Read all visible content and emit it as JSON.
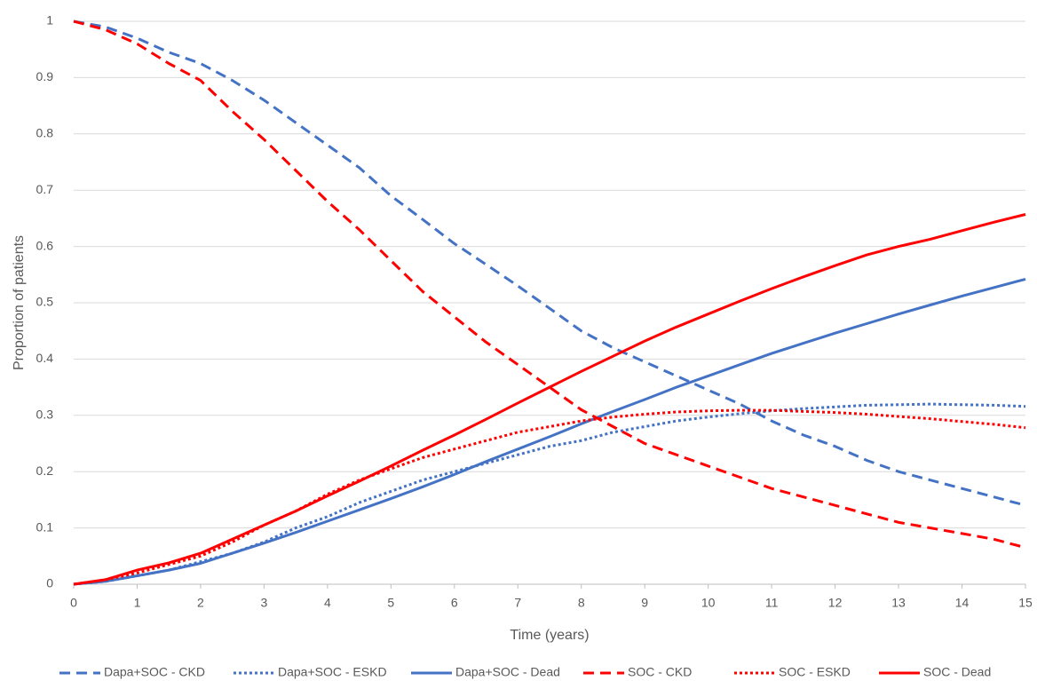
{
  "chart_data": {
    "type": "line",
    "x_label": "Time (years)",
    "y_label": "Proportion of patients",
    "x": [
      0,
      0.5,
      1,
      1.5,
      2,
      2.5,
      3,
      3.5,
      4,
      4.5,
      5,
      5.5,
      6,
      6.5,
      7,
      7.5,
      8,
      8.5,
      9,
      9.5,
      10,
      10.5,
      11,
      11.5,
      12,
      12.5,
      13,
      13.5,
      14,
      14.5,
      15
    ],
    "xlim": [
      0,
      15
    ],
    "xticks": [
      0,
      1,
      2,
      3,
      4,
      5,
      6,
      7,
      8,
      9,
      10,
      11,
      12,
      13,
      14,
      15
    ],
    "ylim": [
      0,
      1
    ],
    "yticks": [
      0,
      0.1,
      0.2,
      0.3,
      0.4,
      0.5,
      0.6,
      0.7,
      0.8,
      0.9,
      1
    ],
    "grid": true,
    "legend": "bottom",
    "series": [
      {
        "name": "Dapa+SOC - CKD",
        "color": "#4472c4",
        "dash": "dashed",
        "values": [
          1,
          0.99,
          0.97,
          0.945,
          0.925,
          0.895,
          0.86,
          0.82,
          0.78,
          0.74,
          0.69,
          0.648,
          0.605,
          0.568,
          0.53,
          0.49,
          0.45,
          0.42,
          0.395,
          0.37,
          0.345,
          0.32,
          0.29,
          0.265,
          0.245,
          0.22,
          0.2,
          0.185,
          0.17,
          0.155,
          0.14
        ]
      },
      {
        "name": "Dapa+SOC - ESKD",
        "color": "#4472c4",
        "dash": "dotted",
        "values": [
          0,
          0.005,
          0.015,
          0.025,
          0.04,
          0.055,
          0.075,
          0.1,
          0.12,
          0.145,
          0.165,
          0.185,
          0.2,
          0.215,
          0.23,
          0.245,
          0.255,
          0.27,
          0.28,
          0.29,
          0.297,
          0.303,
          0.308,
          0.312,
          0.315,
          0.318,
          0.319,
          0.32,
          0.319,
          0.318,
          0.316
        ]
      },
      {
        "name": "Dapa+SOC - Dead",
        "color": "#4472c4",
        "dash": "solid",
        "values": [
          0,
          0.005,
          0.015,
          0.025,
          0.037,
          0.055,
          0.073,
          0.092,
          0.112,
          0.132,
          0.152,
          0.173,
          0.195,
          0.218,
          0.24,
          0.262,
          0.285,
          0.307,
          0.328,
          0.35,
          0.37,
          0.39,
          0.41,
          0.428,
          0.446,
          0.463,
          0.48,
          0.496,
          0.512,
          0.527,
          0.542
        ]
      },
      {
        "name": "SOC - CKD",
        "color": "#ff0000",
        "dash": "dashed",
        "values": [
          1,
          0.985,
          0.96,
          0.925,
          0.895,
          0.84,
          0.79,
          0.735,
          0.68,
          0.63,
          0.575,
          0.52,
          0.475,
          0.43,
          0.39,
          0.35,
          0.31,
          0.28,
          0.25,
          0.23,
          0.21,
          0.19,
          0.17,
          0.155,
          0.14,
          0.125,
          0.11,
          0.1,
          0.09,
          0.08,
          0.065
        ]
      },
      {
        "name": "SOC - ESKD",
        "color": "#ff0000",
        "dash": "dotted",
        "values": [
          0,
          0.008,
          0.02,
          0.035,
          0.05,
          0.075,
          0.105,
          0.13,
          0.16,
          0.185,
          0.205,
          0.225,
          0.24,
          0.255,
          0.27,
          0.28,
          0.29,
          0.297,
          0.302,
          0.306,
          0.308,
          0.309,
          0.309,
          0.307,
          0.305,
          0.302,
          0.298,
          0.294,
          0.289,
          0.284,
          0.278
        ]
      },
      {
        "name": "SOC - Dead",
        "color": "#ff0000",
        "dash": "solid",
        "values": [
          0,
          0.008,
          0.025,
          0.038,
          0.055,
          0.08,
          0.105,
          0.13,
          0.157,
          0.183,
          0.21,
          0.238,
          0.265,
          0.293,
          0.322,
          0.35,
          0.378,
          0.405,
          0.432,
          0.457,
          0.48,
          0.503,
          0.525,
          0.546,
          0.566,
          0.585,
          0.6,
          0.613,
          0.628,
          0.643,
          0.657
        ]
      }
    ]
  }
}
